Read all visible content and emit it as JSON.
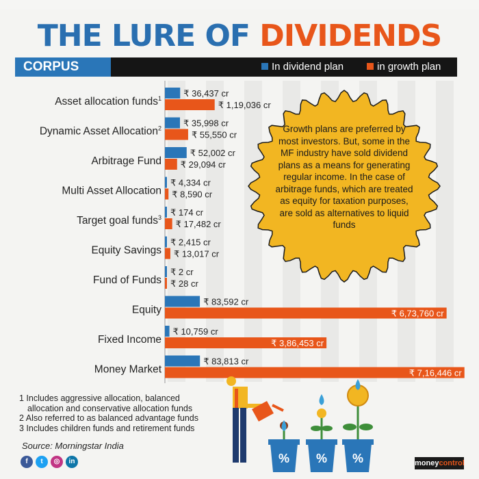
{
  "title": {
    "part1": "THE LURE OF ",
    "part2": "DIVIDENDS"
  },
  "header": {
    "corpus_label": "CORPUS"
  },
  "colors": {
    "dividend": "#2a76b8",
    "growth": "#e8561a",
    "callout": "#f2b622",
    "title_blue": "#2a6fb0"
  },
  "chart_data": {
    "type": "bar",
    "orientation": "horizontal",
    "categories": [
      "Asset allocation funds",
      "Dynamic Asset Allocation",
      "Arbitrage Fund",
      "Multi Asset Allocation",
      "Target goal funds",
      "Equity Savings",
      "Fund of Funds",
      "Equity",
      "Fixed Income",
      "Money Market"
    ],
    "category_superscripts": [
      "1",
      "2",
      "",
      "",
      "3",
      "",
      "",
      "",
      "",
      ""
    ],
    "series": [
      {
        "name": "In dividend plan",
        "values": [
          36437,
          35998,
          52002,
          4334,
          174,
          2415,
          2,
          83592,
          10759,
          83813
        ],
        "labels": [
          "₹ 36,437 cr",
          "₹ 35,998 cr",
          "₹ 52,002 cr",
          "₹ 4,334 cr",
          "₹ 174 cr",
          "₹ 2,415 cr",
          "₹ 2 cr",
          "₹ 83,592 cr",
          "₹ 10,759 cr",
          "₹ 83,813 cr"
        ]
      },
      {
        "name": "in growth plan",
        "values": [
          119036,
          55550,
          29094,
          8590,
          17482,
          13017,
          28,
          673760,
          386453,
          716446
        ],
        "labels": [
          "₹ 1,19,036 cr",
          "₹ 55,550 cr",
          "₹ 29,094 cr",
          "₹ 8,590 cr",
          "₹ 17,482 cr",
          "₹ 13,017 cr",
          "₹ 28 cr",
          "₹ 6,73,760 cr",
          "₹ 3,86,453 cr",
          "₹ 7,16,446 cr"
        ]
      }
    ],
    "xlim": [
      0,
      730000
    ],
    "grid": true,
    "legend": "top-right"
  },
  "callout": {
    "text": "Growth plans are preferred by most investors. But, some in the MF industry have sold dividend plans as a means for generating regular income. In the case of arbitrage funds, which are treated as equity for taxation purposes, are sold as alternatives to liquid funds"
  },
  "footnotes": [
    "1 Includes aggressive allocation, balanced",
    "allocation and  conservative allocation funds",
    "2 Also referred to as balanced advantage funds",
    "3 Includes children funds and retirement funds"
  ],
  "source": "Source: Morningstar India",
  "social": [
    {
      "icon": "facebook-icon",
      "glyph": "f",
      "color": "#3b5998"
    },
    {
      "icon": "twitter-icon",
      "glyph": "t",
      "color": "#1da1f2"
    },
    {
      "icon": "instagram-icon",
      "glyph": "◎",
      "color": "#c13584"
    },
    {
      "icon": "linkedin-icon",
      "glyph": "in",
      "color": "#0e76a8"
    }
  ],
  "pot_label": "%",
  "logo": {
    "left": "money",
    "right": "control"
  }
}
